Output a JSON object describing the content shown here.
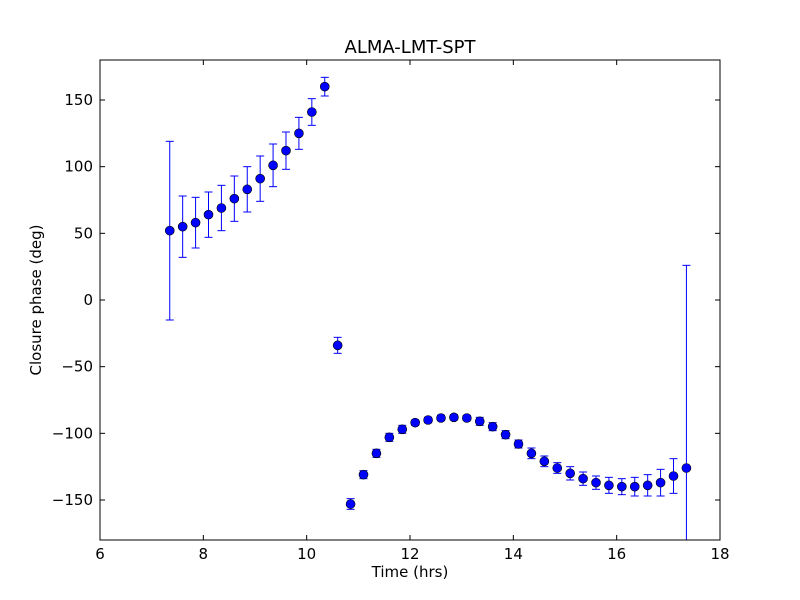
{
  "chart_data": {
    "type": "scatter",
    "title": "ALMA-LMT-SPT",
    "xlabel": "Time (hrs)",
    "ylabel": "Closure phase (deg)",
    "xlim": [
      6,
      18
    ],
    "ylim": [
      -180,
      180
    ],
    "xticks": [
      6,
      8,
      10,
      12,
      14,
      16,
      18
    ],
    "yticks": [
      -150,
      -100,
      -50,
      0,
      50,
      100,
      150
    ],
    "grid": false,
    "color": "#0000ff",
    "series": [
      {
        "name": "closure phase",
        "x": [
          7.35,
          7.6,
          7.85,
          8.1,
          8.35,
          8.6,
          8.85,
          9.1,
          9.35,
          9.6,
          9.85,
          10.1,
          10.35,
          10.6,
          10.85,
          11.1,
          11.35,
          11.6,
          11.85,
          12.1,
          12.35,
          12.6,
          12.85,
          13.1,
          13.35,
          13.6,
          13.85,
          14.1,
          14.35,
          14.6,
          14.85,
          15.1,
          15.35,
          15.6,
          15.85,
          16.1,
          16.35,
          16.6,
          16.85,
          17.1,
          17.35
        ],
        "y": [
          52,
          55,
          58,
          64,
          69,
          76,
          83,
          91,
          101,
          112,
          125,
          141,
          160,
          -34,
          -153,
          -131,
          -115,
          -103,
          -97,
          -92,
          -90,
          -88.5,
          -88,
          -88.5,
          -91,
          -95,
          -101,
          -108,
          -115,
          -121,
          -126,
          -130,
          -134,
          -137,
          -139,
          -140,
          -140,
          -139,
          -137,
          -132,
          -126
        ],
        "yerr": [
          67,
          23,
          19,
          17,
          17,
          17,
          17,
          17,
          16,
          14,
          12,
          10,
          7,
          6,
          4,
          3,
          3,
          3,
          3,
          2,
          2,
          2,
          2,
          2,
          3,
          3,
          3,
          3,
          4,
          4,
          4,
          5,
          5,
          5,
          6,
          6,
          7,
          8,
          10,
          13,
          152
        ]
      }
    ]
  }
}
